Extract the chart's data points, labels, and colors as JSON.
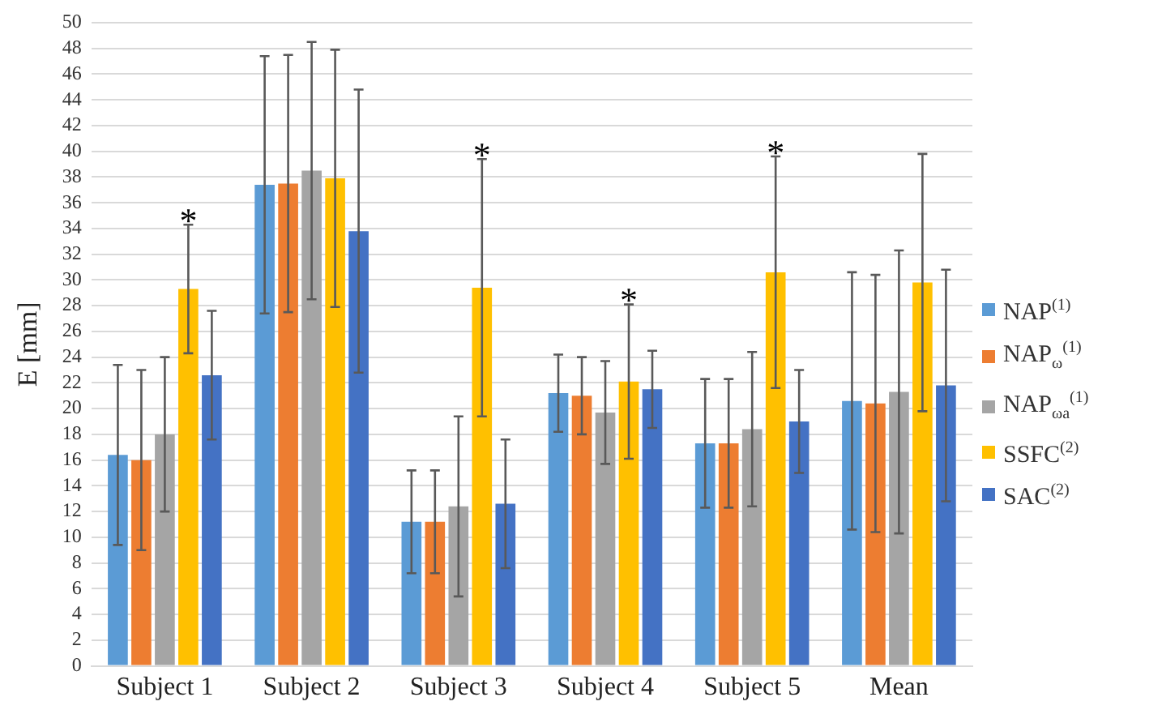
{
  "chart_data": {
    "type": "bar",
    "ylabel": "E [mm]",
    "categories": [
      "Subject 1",
      "Subject 2",
      "Subject 3",
      "Subject 4",
      "Subject 5",
      "Mean"
    ],
    "series": [
      {
        "name": "NAP$^{(1)}$",
        "color": "#5b9bd5",
        "values": [
          16.4,
          37.4,
          11.2,
          21.2,
          17.3,
          20.6
        ],
        "errors": [
          7,
          10,
          4,
          3,
          5,
          10
        ]
      },
      {
        "name": "NAP$_{ω}$$^{(1)}$",
        "color": "#ed7d31",
        "values": [
          16,
          37.5,
          11.2,
          21.0,
          17.3,
          20.4
        ],
        "errors": [
          7,
          10,
          4,
          3,
          5,
          10
        ]
      },
      {
        "name": "NAP$_{ωa}$$^{(1)}$",
        "color": "#a5a5a5",
        "values": [
          18,
          38.5,
          12.4,
          19.7,
          18.4,
          21.3
        ],
        "errors": [
          6,
          10,
          7,
          4,
          6,
          11
        ]
      },
      {
        "name": "SSFC$^{(2)}$",
        "color": "#ffc000",
        "values": [
          29.3,
          37.9,
          29.4,
          22.1,
          30.6,
          29.8
        ],
        "errors": [
          5,
          10,
          10,
          6,
          9,
          10
        ],
        "value_labels": [
          "*",
          null,
          "*",
          "*",
          "*",
          null
        ]
      },
      {
        "name": "SAC$^{(2)}$",
        "color": "#4472c4",
        "values": [
          22.6,
          33.8,
          12.6,
          21.5,
          19.0,
          21.8
        ],
        "errors": [
          5,
          11,
          5,
          3,
          4,
          9
        ]
      }
    ],
    "ylim": [
      0,
      50
    ],
    "yticks": [
      0,
      2,
      4,
      6,
      8,
      10,
      12,
      14,
      16,
      18,
      20,
      22,
      24,
      26,
      28,
      30,
      32,
      34,
      36,
      38,
      40,
      42,
      44,
      46,
      48,
      50
    ],
    "grid": "y",
    "legend": "right"
  }
}
